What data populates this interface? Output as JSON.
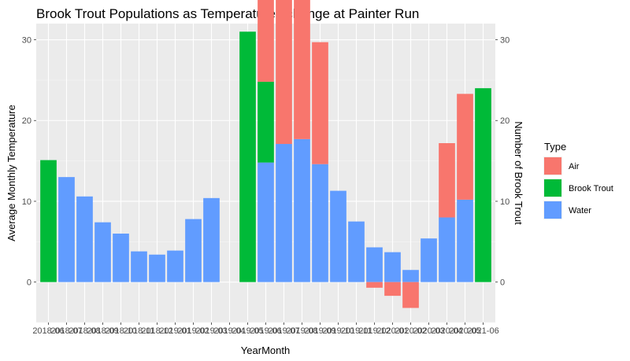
{
  "chart_data": {
    "type": "bar",
    "title": "Brook Trout Populations as Temperatures change at Painter Run",
    "xlabel": "YearMonth",
    "ylabel": "Average Monthly Temperature",
    "y2label": "Number of Brook Trout",
    "ylim": [
      -5,
      32
    ],
    "yticks": [
      0,
      10,
      20,
      30
    ],
    "y2ticks": [
      0,
      10,
      20,
      30
    ],
    "legend": {
      "title": "Type",
      "position": "right",
      "entries": [
        {
          "name": "Air",
          "color": "#F8766D"
        },
        {
          "name": "Brook Trout",
          "color": "#00BA38"
        },
        {
          "name": "Water",
          "color": "#619CFF"
        }
      ]
    },
    "categories": [
      "2018-06",
      "2018-07",
      "2018-08",
      "2018-09",
      "2018-10",
      "2018-11",
      "2018-12",
      "2019-01",
      "2019-02",
      "2019-03",
      "2019-04",
      "2019-05",
      "2019-06",
      "2019-07",
      "2019-08",
      "2019-09",
      "2019-10",
      "2019-11",
      "2019-12",
      "2020-01",
      "2020-02",
      "2020-03",
      "2020-04",
      "2020-05",
      "2021-06"
    ],
    "tick_labels": [
      "2018-06",
      "2018-07",
      "2018-08",
      "2018-09",
      "2018-10",
      "2018-11",
      "2018-12",
      "2019-01",
      "2019-02",
      "2019-03",
      "2019-04",
      "2019-05",
      "2019-06",
      "2019-07",
      "2019-08",
      "2019-09",
      "2019-10",
      "2019-11",
      "2019-12",
      "2020-01",
      "2020-02",
      "2020-03",
      "2020-04",
      "2020-05",
      "2021-06"
    ],
    "series": [
      {
        "name": "Air",
        "color": "#F8766D",
        "values": [
          null,
          null,
          null,
          null,
          null,
          null,
          null,
          null,
          null,
          null,
          null,
          null,
          18.4,
          20.9,
          19.8,
          15.1,
          null,
          null,
          -0.7,
          -1.7,
          -3.2,
          null,
          9.2,
          13.1,
          null
        ]
      },
      {
        "name": "Brook Trout",
        "color": "#00BA38",
        "values": [
          15.1,
          null,
          null,
          null,
          null,
          null,
          null,
          null,
          null,
          null,
          null,
          31,
          10,
          null,
          null,
          null,
          null,
          null,
          null,
          null,
          null,
          null,
          null,
          null,
          24
        ]
      },
      {
        "name": "Water",
        "color": "#619CFF",
        "values": [
          null,
          13,
          10.6,
          7.4,
          6,
          3.8,
          3.4,
          3.9,
          7.8,
          10.4,
          null,
          null,
          14.8,
          17.1,
          17.7,
          14.6,
          11.3,
          7.5,
          4.3,
          3.7,
          1.5,
          5.4,
          8,
          10.2,
          null
        ]
      }
    ]
  }
}
